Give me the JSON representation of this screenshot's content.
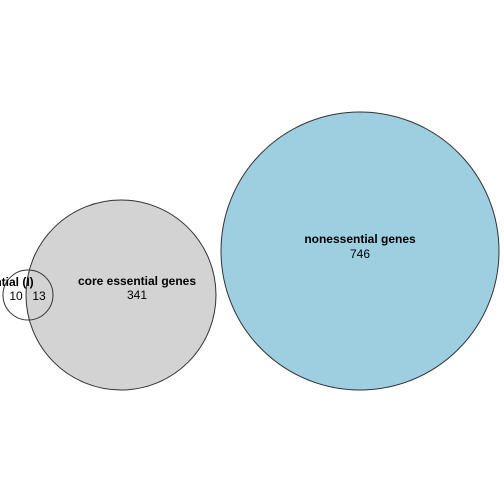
{
  "venn": {
    "sets": [
      {
        "label": "ssential (I)",
        "count": "10",
        "fill": "#ffffff",
        "stroke": "#333333"
      },
      {
        "label": "core essential genes",
        "count": "341",
        "fill": "#d3d3d3",
        "stroke": "#333333"
      },
      {
        "label": "nonessential genes",
        "count": "746",
        "fill": "#9ecfe1",
        "stroke": "#333333"
      }
    ],
    "overlaps": [
      {
        "between": [
          "ssential (I)",
          "core essential genes"
        ],
        "count": "13"
      }
    ]
  }
}
